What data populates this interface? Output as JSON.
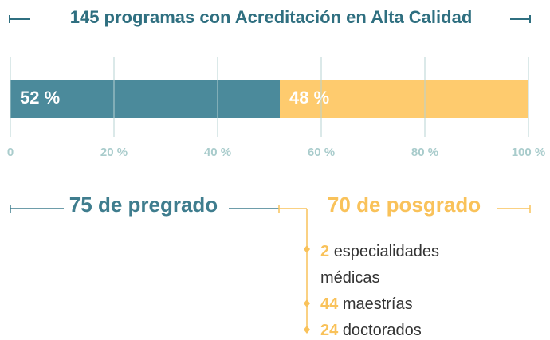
{
  "chart_data": {
    "type": "stacked_bar",
    "title": "145 programas con Acreditación en Alta Calidad",
    "series": [
      {
        "color": "#4b8a9b",
        "values": [
          52
        ],
        "value_labels": [
          "52 %"
        ]
      },
      {
        "color": "#fecb6e",
        "values": [
          48
        ],
        "value_labels": [
          "48 %"
        ]
      }
    ],
    "xlim": [
      0,
      100
    ],
    "xticks": [
      0,
      {
        "value": 20,
        "label": "20 %"
      },
      {
        "value": 40,
        "label": "40 %"
      },
      {
        "value": 60,
        "label": "60 %"
      },
      {
        "value": 80,
        "label": "80 %"
      },
      {
        "value": 100,
        "label": "100 %"
      }
    ],
    "grid": true,
    "groups": [
      {
        "label": "75 de pregrado",
        "color": "#3f7d8e"
      },
      {
        "label": "70 de posgrado",
        "color": "#f9c25a",
        "items": [
          {
            "number": 2,
            "text": "especialidades médicas"
          },
          {
            "number": 44,
            "text": "maestrías"
          },
          {
            "number": 24,
            "text": "doctorados"
          }
        ]
      }
    ]
  }
}
